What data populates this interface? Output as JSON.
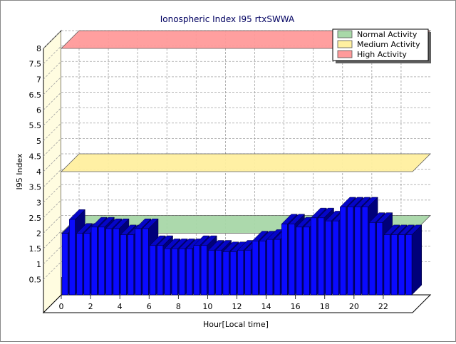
{
  "chart_data": {
    "type": "bar",
    "title": "Ionospheric Index I95 rtxSWWA",
    "xlabel": "Hour[Local time]",
    "ylabel": "I95 Index",
    "ylim": [
      0,
      8
    ],
    "y_ticks": [
      "0.5",
      "1",
      "1.5",
      "2",
      "2.5",
      "3",
      "3.5",
      "4",
      "4.5",
      "5",
      "5.5",
      "6",
      "6.5",
      "7",
      "7.5",
      "8"
    ],
    "y_tick_values": [
      0.5,
      1,
      1.5,
      2,
      2.5,
      3,
      3.5,
      4,
      4.5,
      5,
      5.5,
      6,
      6.5,
      7,
      7.5,
      8
    ],
    "x_ticks": [
      "0",
      "2",
      "4",
      "6",
      "8",
      "10",
      "12",
      "14",
      "16",
      "18",
      "20",
      "22"
    ],
    "x_tick_values": [
      0,
      2,
      4,
      6,
      8,
      10,
      12,
      14,
      16,
      18,
      20,
      22
    ],
    "grid": true,
    "legend_position": "top-right",
    "legend": [
      {
        "label": "Normal Activity",
        "color": "#a8d8a8"
      },
      {
        "label": "Medium Activity",
        "color": "#fff0a0"
      },
      {
        "label": "High Activity",
        "color": "#ff9a9a"
      }
    ],
    "bands": [
      {
        "name": "Normal Activity",
        "value": 2.0,
        "color": "#a8d8a8"
      },
      {
        "name": "Medium Activity",
        "value": 4.0,
        "color": "#fff0a0"
      },
      {
        "name": "High Activity",
        "value": 8.0,
        "color": "#ff9a9a"
      }
    ],
    "bar_color": "#0a0aff",
    "bar_top_color": "#0505c8",
    "bar_side_color": "#00007a",
    "x": [
      0,
      0.5,
      1,
      1.5,
      2,
      2.5,
      3,
      3.5,
      4,
      4.5,
      5,
      5.5,
      6,
      6.5,
      7,
      7.5,
      8,
      8.5,
      9,
      9.5,
      10,
      10.5,
      11,
      11.5,
      12,
      12.5,
      13,
      13.5,
      14,
      14.5,
      15,
      15.5,
      16,
      16.5,
      17,
      17.5,
      18,
      18.5,
      19,
      19.5,
      20,
      20.5,
      21,
      21.5,
      22,
      22.5,
      23,
      23.5
    ],
    "values": [
      2.0,
      2.45,
      2.0,
      2.0,
      2.2,
      2.2,
      2.15,
      2.15,
      1.95,
      1.95,
      2.15,
      2.15,
      1.6,
      1.6,
      1.5,
      1.5,
      1.5,
      1.5,
      1.6,
      1.6,
      1.45,
      1.45,
      1.4,
      1.4,
      1.45,
      1.45,
      1.75,
      1.75,
      1.8,
      1.8,
      2.3,
      2.3,
      2.2,
      2.2,
      2.5,
      2.5,
      2.4,
      2.4,
      2.85,
      2.85,
      2.85,
      2.85,
      2.35,
      2.35,
      1.95,
      1.95,
      1.95,
      1.95
    ]
  }
}
